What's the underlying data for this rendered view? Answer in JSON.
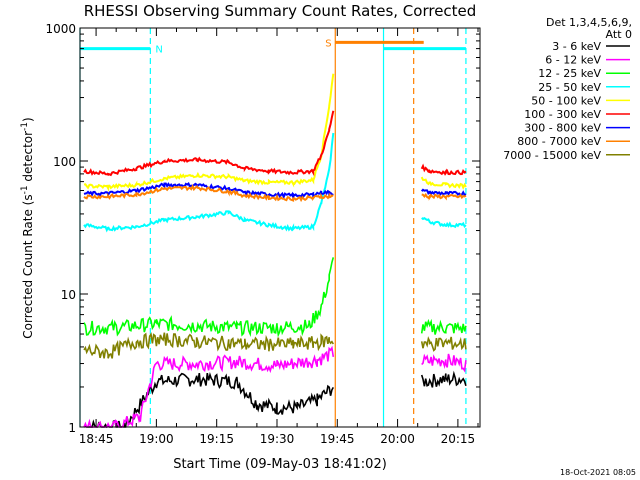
{
  "chart_data": {
    "type": "line",
    "title": "RHESSI Observing Summary Count Rates, Corrected",
    "xlabel": "Start Time (09-May-03 18:41:02)",
    "ylabel": "Corrected Count Rate (s",
    "ylabel_sup1": "-1",
    "ylabel_mid": " detector",
    "ylabel_sup2": "-1",
    "ylabel_end": ")",
    "y_scale": "log",
    "ylim": [
      1,
      1000
    ],
    "xlim_minutes_after_18_00": [
      41.0,
      260.0
    ],
    "x_tick_labels": [
      {
        "label": "18:45",
        "t": 45
      },
      {
        "label": "19:00",
        "t": 60
      },
      {
        "label": "19:15",
        "t": 75
      },
      {
        "label": "19:30",
        "t": 90
      },
      {
        "label": "19:45",
        "t": 105
      },
      {
        "label": "20:00",
        "t": 120
      },
      {
        "label": "20:15",
        "t": 135
      }
    ],
    "y_tick_labels": [
      {
        "label": "1",
        "v": 1
      },
      {
        "label": "10",
        "v": 10
      },
      {
        "label": "100",
        "v": 100
      },
      {
        "label": "1000",
        "v": 1000
      }
    ],
    "legend": {
      "placement": "right",
      "header_lines": [
        "Det 1,3,4,5,6,9,",
        "Att 0"
      ]
    },
    "series": [
      {
        "name": "3 - 6 keV",
        "color": "#000000",
        "x": [
          42,
          52,
          60,
          70,
          80,
          85,
          90,
          95,
          100,
          104,
          126,
          132,
          137
        ],
        "y": [
          1,
          1,
          2.2,
          2.3,
          2.2,
          1.5,
          1.4,
          1.4,
          1.6,
          2.0,
          2.2,
          2.3,
          2.3
        ]
      },
      {
        "name": "6 - 12 keV",
        "color": "#ff00ff",
        "x": [
          42,
          50,
          56,
          60,
          70,
          80,
          90,
          100,
          104,
          126,
          132,
          137
        ],
        "y": [
          1,
          1,
          1.2,
          3.0,
          3.0,
          3.1,
          2.9,
          3.2,
          3.6,
          3.1,
          3.2,
          3.0
        ]
      },
      {
        "name": "12 - 25 keV",
        "color": "#00ff00",
        "x": [
          42,
          50,
          60,
          70,
          80,
          90,
          98,
          101,
          103,
          104,
          126,
          132,
          137
        ],
        "y": [
          5.6,
          5.6,
          6.0,
          5.8,
          5.6,
          5.6,
          5.8,
          8.0,
          13.0,
          18.0,
          5.6,
          5.6,
          5.5
        ]
      },
      {
        "name": "25 - 50 keV",
        "color": "#00ffff",
        "x": [
          42,
          48,
          55,
          62,
          70,
          78,
          82,
          88,
          94,
          99,
          101,
          103,
          104,
          126,
          128,
          132,
          137
        ],
        "y": [
          33,
          31,
          32,
          36,
          38,
          41,
          36,
          33,
          31,
          32,
          48,
          85,
          160,
          38,
          35,
          33,
          33
        ]
      },
      {
        "name": "50 - 100 keV",
        "color": "#ffff00",
        "x": [
          42,
          48,
          55,
          62,
          70,
          78,
          82,
          88,
          94,
          99,
          101,
          103,
          104,
          126,
          128,
          132,
          137
        ],
        "y": [
          65,
          64,
          66,
          74,
          78,
          76,
          71,
          69,
          69,
          72,
          110,
          260,
          450,
          75,
          68,
          66,
          65
        ]
      },
      {
        "name": "100 - 300 keV",
        "color": "#ff0000",
        "x": [
          42,
          48,
          55,
          62,
          70,
          78,
          82,
          88,
          94,
          99,
          101,
          103,
          104,
          126,
          128,
          132,
          137
        ],
        "y": [
          84,
          80,
          88,
          100,
          102,
          98,
          88,
          84,
          82,
          84,
          110,
          170,
          240,
          90,
          84,
          82,
          82
        ]
      },
      {
        "name": "300 - 800 keV",
        "color": "#0000ff",
        "x": [
          42,
          48,
          55,
          62,
          70,
          78,
          82,
          88,
          94,
          99,
          101,
          103,
          104,
          126,
          128,
          132,
          137
        ],
        "y": [
          57,
          57,
          60,
          66,
          66,
          62,
          58,
          56,
          55,
          56,
          58,
          58,
          57,
          60,
          58,
          57,
          57
        ]
      },
      {
        "name": "800 - 7000 keV",
        "color": "#ff8000",
        "x": [
          42,
          48,
          55,
          62,
          70,
          78,
          82,
          88,
          94,
          99,
          101,
          103,
          104,
          126,
          128,
          132,
          137
        ],
        "y": [
          54,
          54,
          56,
          62,
          63,
          59,
          55,
          53,
          52,
          53,
          54,
          54,
          54,
          56,
          54,
          54,
          54
        ]
      },
      {
        "name": "7000 - 15000 keV",
        "color": "#808000",
        "x": [
          42,
          48,
          55,
          62,
          70,
          78,
          82,
          88,
          94,
          99,
          101,
          103,
          104,
          126,
          128,
          132,
          137
        ],
        "y": [
          3.8,
          3.6,
          4.4,
          4.6,
          4.4,
          4.3,
          4.2,
          4.2,
          4.2,
          4.3,
          4.4,
          4.5,
          4.5,
          4.3,
          4.2,
          4.3,
          4.2
        ]
      }
    ],
    "flag_segments": [
      {
        "label": "N",
        "color": "#00ffff",
        "x_start": 41.0,
        "x_end": 58.5,
        "y": 700
      },
      {
        "label": "S",
        "color": "#ff8000",
        "x_start": 104.5,
        "x_end": 126.5,
        "y": 780
      },
      {
        "label": "",
        "color": "#00ffff",
        "x_start": 116.5,
        "x_end": 137.0,
        "y": 700
      }
    ],
    "vertical_markers": [
      {
        "t": 41.0,
        "color": "#00ffff",
        "style": "solid"
      },
      {
        "t": 58.5,
        "color": "#00ffff",
        "style": "dashed"
      },
      {
        "t": 104.5,
        "color": "#ff8000",
        "style": "solid"
      },
      {
        "t": 116.5,
        "color": "#00ffff",
        "style": "solid"
      },
      {
        "t": 124.0,
        "color": "#ff8000",
        "style": "dashed"
      },
      {
        "t": 137.0,
        "color": "#00ffff",
        "style": "dashed"
      }
    ],
    "footer_date": "18-Oct-2021 08:05"
  }
}
